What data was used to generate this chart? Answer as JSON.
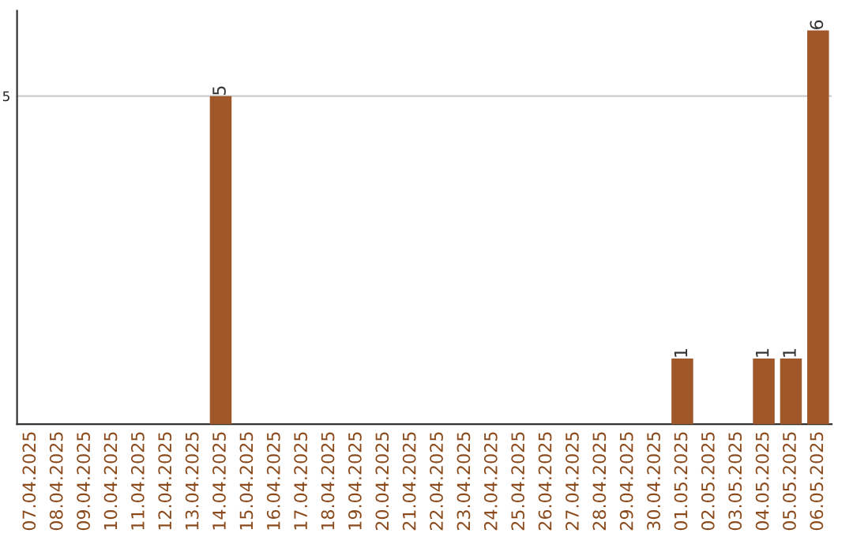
{
  "chart_data": {
    "type": "bar",
    "categories": [
      "07.04.2025",
      "08.04.2025",
      "09.04.2025",
      "10.04.2025",
      "11.04.2025",
      "12.04.2025",
      "13.04.2025",
      "14.04.2025",
      "15.04.2025",
      "16.04.2025",
      "17.04.2025",
      "18.04.2025",
      "19.04.2025",
      "20.04.2025",
      "21.04.2025",
      "22.04.2025",
      "23.04.2025",
      "24.04.2025",
      "25.04.2025",
      "26.04.2025",
      "27.04.2025",
      "28.04.2025",
      "29.04.2025",
      "30.04.2025",
      "01.05.2025",
      "02.05.2025",
      "03.05.2025",
      "04.05.2025",
      "05.05.2025",
      "06.05.2025"
    ],
    "values": [
      0,
      0,
      0,
      0,
      0,
      0,
      0,
      5,
      0,
      0,
      0,
      0,
      0,
      0,
      0,
      0,
      0,
      0,
      0,
      0,
      0,
      0,
      0,
      0,
      1,
      0,
      0,
      1,
      1,
      6
    ],
    "value_labels": [
      null,
      null,
      null,
      null,
      null,
      null,
      null,
      "5",
      null,
      null,
      null,
      null,
      null,
      null,
      null,
      null,
      null,
      null,
      null,
      null,
      null,
      null,
      null,
      null,
      "1",
      null,
      null,
      "1",
      "1",
      "6"
    ],
    "color": "#a0582a",
    "ylim": [
      0,
      6.3
    ],
    "yticks": [
      5
    ],
    "grid": "y"
  }
}
